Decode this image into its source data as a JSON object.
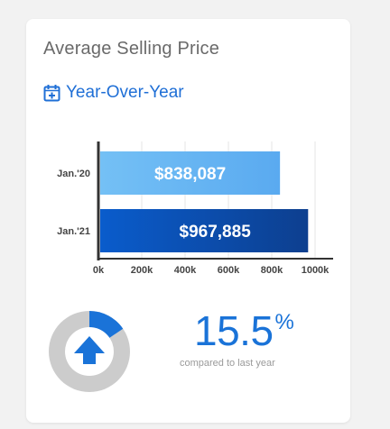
{
  "card": {
    "title": "Average Selling Price",
    "subtitle": "Year-Over-Year",
    "subtitle_icon": "calendar-plus-icon"
  },
  "chart_data": {
    "type": "bar",
    "orientation": "horizontal",
    "categories": [
      "Jan.'20",
      "Jan.'21"
    ],
    "values": [
      838087,
      967885
    ],
    "value_labels": [
      "$838,087",
      "$967,885"
    ],
    "xlim": [
      0,
      1000000
    ],
    "x_ticks": [
      "0k",
      "200k",
      "400k",
      "600k",
      "800k",
      "1000k"
    ],
    "colors": [
      "#5aaaf0",
      "#1560c4"
    ],
    "grid": true
  },
  "change": {
    "value": "15.5",
    "unit": "%",
    "caption": "compared to last year",
    "direction": "up",
    "direction_icon": "arrow-up-icon",
    "colors": {
      "accent": "#1a73d8",
      "track": "#cccccc"
    }
  }
}
